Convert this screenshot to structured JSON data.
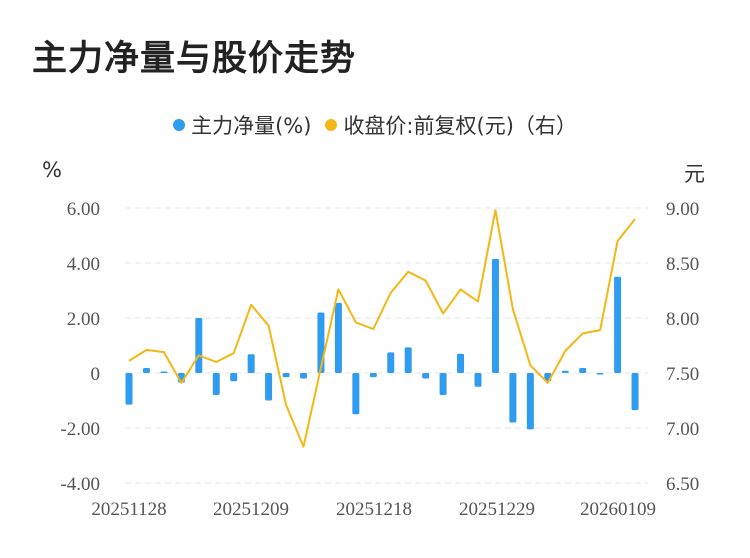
{
  "title": "主力净量与股价走势",
  "legend": [
    {
      "label": "主力净量(%)",
      "color": "#2f9cf0"
    },
    {
      "label": "收盘价:前复权(元)（右）",
      "color": "#f5b715"
    }
  ],
  "units": {
    "left": "%",
    "right": "元"
  },
  "chart_data": {
    "type": "bar+line",
    "x_ticks": [
      "20251128",
      "20251209",
      "20251218",
      "20251229",
      "20260109"
    ],
    "left_axis": {
      "ticks": [
        "6.00",
        "4.00",
        "2.00",
        "0",
        "-2.00",
        "-4.00"
      ],
      "ylim": [
        -4,
        6
      ]
    },
    "right_axis": {
      "ticks": [
        "9.00",
        "8.50",
        "8.00",
        "7.50",
        "7.00",
        "6.50"
      ],
      "ylim": [
        6.5,
        9
      ]
    },
    "grid": "dashed horizontal",
    "series": [
      {
        "name": "主力净量(%)",
        "type": "bar",
        "axis": "left",
        "color": "#2f9cf0",
        "values": [
          -1.15,
          0.18,
          0.03,
          -0.35,
          2.0,
          -0.8,
          -0.3,
          0.68,
          -1.0,
          -0.15,
          -0.2,
          2.2,
          2.55,
          -1.5,
          -0.15,
          0.75,
          0.93,
          -0.2,
          -0.8,
          0.7,
          -0.5,
          4.15,
          -1.8,
          -2.05,
          -0.3,
          0.08,
          0.18,
          -0.05,
          3.5,
          -1.35
        ]
      },
      {
        "name": "收盘价:前复权(元)（右）",
        "type": "line",
        "axis": "right",
        "color": "#f5b715",
        "values": [
          7.61,
          7.71,
          7.69,
          7.41,
          7.66,
          7.6,
          7.68,
          8.12,
          7.93,
          7.21,
          6.83,
          7.55,
          8.26,
          7.96,
          7.9,
          8.23,
          8.42,
          8.34,
          8.04,
          8.26,
          8.15,
          8.98,
          8.08,
          7.57,
          7.41,
          7.7,
          7.86,
          7.89,
          8.7,
          8.9
        ]
      }
    ]
  }
}
